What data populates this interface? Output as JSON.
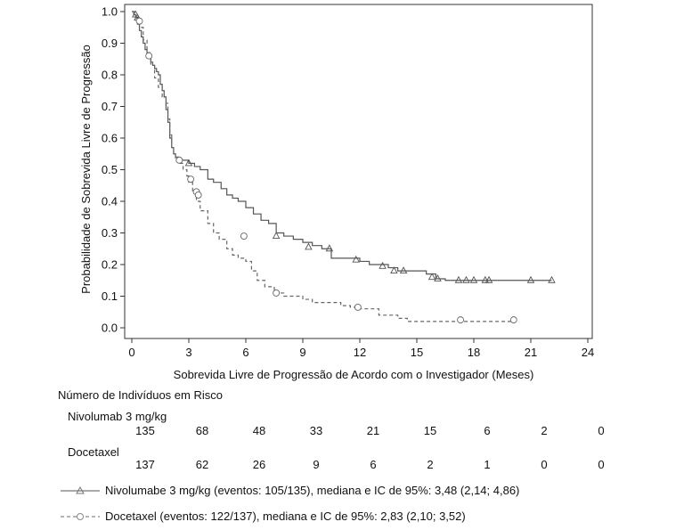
{
  "chart_data": {
    "type": "line",
    "subtype": "kaplan-meier",
    "xlabel": "Sobrevida Livre de Progressão de Acordo com o Investigador (Meses)",
    "ylabel": "Probabilidade de Sobrevida Livre de Progressão",
    "xlim": [
      0,
      24
    ],
    "ylim": [
      0,
      1
    ],
    "xticks": [
      0,
      3,
      6,
      9,
      12,
      15,
      18,
      21,
      24
    ],
    "yticks": [
      "0.0",
      "0.1",
      "0.2",
      "0.3",
      "0.4",
      "0.5",
      "0.6",
      "0.7",
      "0.8",
      "0.9",
      "1.0"
    ],
    "grid": false,
    "series": [
      {
        "name": "Nivolumabe 3 mg/kg",
        "color": "#555555",
        "line_style": "solid",
        "censor_marker": "triangle",
        "x": [
          0,
          0.1,
          0.2,
          0.3,
          0.4,
          0.5,
          0.6,
          0.7,
          0.8,
          0.9,
          1.0,
          1.1,
          1.2,
          1.3,
          1.4,
          1.5,
          1.6,
          1.7,
          1.8,
          1.9,
          2.0,
          2.1,
          2.2,
          2.3,
          2.5,
          3.0,
          3.3,
          3.6,
          4.0,
          4.3,
          4.7,
          5.0,
          5.3,
          5.6,
          6.0,
          6.4,
          6.8,
          7.2,
          7.6,
          8.0,
          8.5,
          9.0,
          9.5,
          10.0,
          10.5,
          11.0,
          11.5,
          12.0,
          12.5,
          13.0,
          13.5,
          14.0,
          14.5,
          15.0,
          15.5,
          16.0,
          16.5,
          22.1
        ],
        "y": [
          1.0,
          0.99,
          0.98,
          0.96,
          0.94,
          0.92,
          0.9,
          0.88,
          0.87,
          0.86,
          0.84,
          0.83,
          0.82,
          0.81,
          0.8,
          0.77,
          0.75,
          0.73,
          0.69,
          0.65,
          0.6,
          0.57,
          0.55,
          0.54,
          0.53,
          0.52,
          0.51,
          0.5,
          0.47,
          0.46,
          0.44,
          0.42,
          0.41,
          0.4,
          0.38,
          0.36,
          0.34,
          0.33,
          0.3,
          0.29,
          0.28,
          0.27,
          0.26,
          0.25,
          0.22,
          0.22,
          0.22,
          0.21,
          0.2,
          0.2,
          0.19,
          0.18,
          0.18,
          0.18,
          0.17,
          0.155,
          0.15,
          0.15
        ],
        "censored_x": [
          0.2,
          0.3,
          3.0,
          7.6,
          9.3,
          10.4,
          11.8,
          13.2,
          13.8,
          14.3,
          15.8,
          16.1,
          17.2,
          17.6,
          18.0,
          18.6,
          18.8,
          21.0,
          22.1
        ],
        "censored_y": [
          0.99,
          0.98,
          0.52,
          0.29,
          0.255,
          0.25,
          0.215,
          0.195,
          0.18,
          0.18,
          0.16,
          0.155,
          0.15,
          0.15,
          0.15,
          0.15,
          0.15,
          0.15,
          0.15
        ]
      },
      {
        "name": "Docetaxel",
        "color": "#666666",
        "line_style": "dashed",
        "censor_marker": "circle",
        "x": [
          0,
          0.2,
          0.4,
          0.6,
          0.8,
          1.0,
          1.2,
          1.4,
          1.6,
          1.8,
          1.9,
          2.0,
          2.1,
          2.2,
          2.3,
          2.5,
          2.7,
          2.9,
          3.0,
          3.2,
          3.4,
          3.6,
          4.0,
          4.3,
          4.6,
          5.0,
          5.3,
          5.6,
          6.0,
          6.3,
          6.6,
          7.0,
          7.5,
          8.0,
          9.0,
          9.5,
          10.0,
          10.5,
          11.0,
          11.5,
          12.0,
          13.0,
          14.0,
          14.5,
          16.0,
          17.0,
          20.1
        ],
        "y": [
          1.0,
          0.98,
          0.95,
          0.91,
          0.87,
          0.83,
          0.79,
          0.76,
          0.73,
          0.71,
          0.66,
          0.61,
          0.57,
          0.55,
          0.53,
          0.52,
          0.5,
          0.48,
          0.46,
          0.43,
          0.4,
          0.37,
          0.33,
          0.3,
          0.28,
          0.25,
          0.23,
          0.22,
          0.21,
          0.18,
          0.15,
          0.13,
          0.11,
          0.1,
          0.09,
          0.08,
          0.08,
          0.08,
          0.07,
          0.065,
          0.06,
          0.04,
          0.03,
          0.02,
          0.02,
          0.02,
          0.02
        ],
        "censored_x": [
          0.4,
          0.9,
          2.5,
          3.1,
          3.4,
          3.5,
          5.9,
          7.6,
          11.9,
          17.3,
          20.1
        ],
        "censored_y": [
          0.97,
          0.86,
          0.53,
          0.47,
          0.43,
          0.42,
          0.29,
          0.11,
          0.065,
          0.025,
          0.025
        ]
      }
    ]
  },
  "risk_table": {
    "title": "Número de Indivíduos em Risco",
    "groups": [
      {
        "label": "Nivolumab 3 mg/kg",
        "values": [
          "135",
          "68",
          "48",
          "33",
          "21",
          "15",
          "6",
          "2",
          "0"
        ]
      },
      {
        "label": "Docetaxel",
        "values": [
          "137",
          "62",
          "26",
          "9",
          "6",
          "2",
          "1",
          "0",
          "0"
        ]
      }
    ]
  },
  "legend": {
    "entries": [
      {
        "text": "Nivolumabe 3 mg/kg (eventos: 105/135), mediana e IC de 95%: 3,48 (2,14; 4,86)",
        "marker": "triangle",
        "line_style": "solid"
      },
      {
        "text": "Docetaxel (eventos: 122/137), mediana e IC de 95%: 2,83 (2,10; 3,52)",
        "marker": "circle",
        "line_style": "dashed"
      }
    ]
  }
}
